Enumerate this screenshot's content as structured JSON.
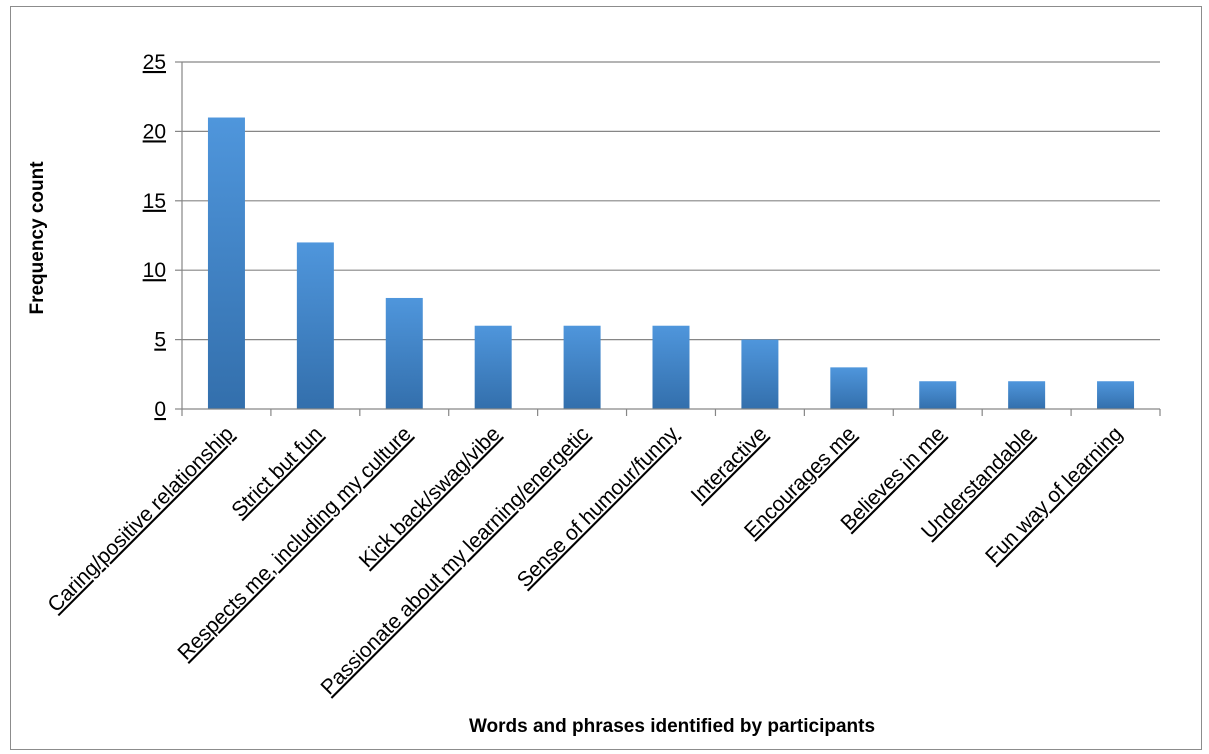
{
  "chart_data": {
    "type": "bar",
    "title": "",
    "xlabel": "Words and phrases identified by participants",
    "ylabel": "Frequency count",
    "ylim": [
      0,
      25
    ],
    "yticks": [
      0,
      5,
      10,
      15,
      20,
      25
    ],
    "grid": true,
    "categories": [
      "Caring/positive relationship",
      "Strict but fun",
      "Respects me, including my culture",
      "Kick back/swag/vibe",
      "Passionate about my learning/energetic",
      "Sense of humour/funny",
      "Interactive",
      "Encourages me",
      "Believes in me",
      "Understandable",
      "Fun way of learning"
    ],
    "values": [
      21,
      12,
      8,
      6,
      6,
      6,
      5,
      3,
      2,
      2,
      2
    ],
    "colors": {
      "bar_top": "#4f96dc",
      "bar_bottom": "#336fac",
      "grid": "#868686"
    }
  }
}
